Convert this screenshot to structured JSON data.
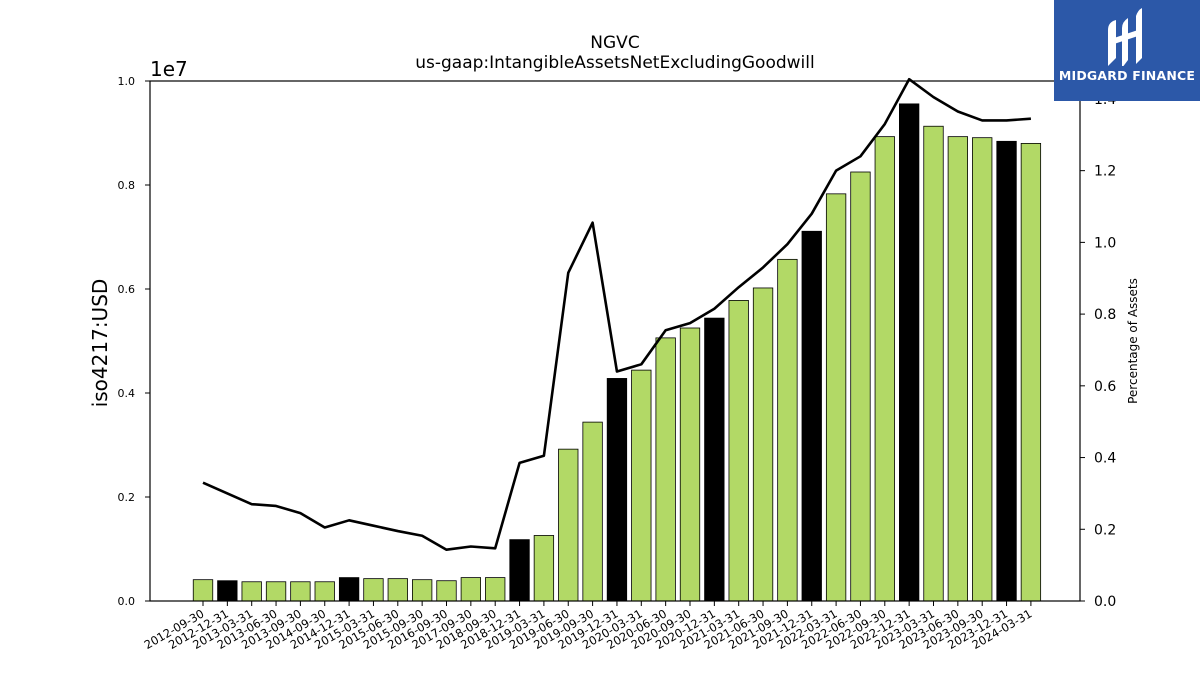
{
  "chart_data": {
    "type": "bar",
    "title": "NGVC",
    "subtitle": "us-gaap:IntangibleAssetsNetExcludingGoodwill",
    "ylabel": "iso4217:USD",
    "y_exponent_label": "1e7",
    "y2label": "Percentage of Assets",
    "ylim": [
      0,
      10000000
    ],
    "y2lim": [
      0,
      1.45
    ],
    "y_ticks": [
      0,
      2000000,
      4000000,
      6000000,
      8000000,
      10000000
    ],
    "y_tick_labels": [
      "0.0",
      "0.2",
      "0.4",
      "0.6",
      "0.8",
      "1.0"
    ],
    "y2_ticks": [
      0,
      0.2,
      0.4,
      0.6,
      0.8,
      1.0,
      1.2,
      1.4
    ],
    "y2_tick_labels": [
      "0.0",
      "0.2",
      "0.4",
      "0.6",
      "0.8",
      "1.0",
      "1.2",
      "1.4"
    ],
    "grid": false,
    "colors": {
      "quarter_bar": "#b2d966",
      "fiscal_year_bar": "#000000",
      "line": "#000000"
    },
    "categories": [
      "2012-09-30",
      "2012-12-31",
      "2013-03-31",
      "2013-06-30",
      "2013-09-30",
      "2014-09-30",
      "2014-12-31",
      "2015-03-31",
      "2015-06-30",
      "2015-09-30",
      "2016-09-30",
      "2017-09-30",
      "2018-09-30",
      "2018-12-31",
      "2019-03-31",
      "2019-06-30",
      "2019-09-30",
      "2019-12-31",
      "2020-03-31",
      "2020-06-30",
      "2020-09-30",
      "2020-12-31",
      "2021-03-31",
      "2021-06-30",
      "2021-09-30",
      "2021-12-31",
      "2022-03-31",
      "2022-06-30",
      "2022-09-30",
      "2022-12-31",
      "2023-03-31",
      "2023-06-30",
      "2023-09-30",
      "2023-12-31",
      "2024-03-31"
    ],
    "series": [
      {
        "kind": "bar",
        "values": [
          410000,
          390000,
          370000,
          370000,
          370000,
          370000,
          450000,
          430000,
          430000,
          410000,
          390000,
          450000,
          450000,
          1180000,
          1260000,
          2920000,
          3440000,
          4280000,
          4440000,
          5060000,
          5250000,
          5440000,
          5780000,
          6020000,
          6570000,
          7110000,
          7830000,
          8250000,
          8930000,
          9560000,
          9130000,
          8930000,
          8910000,
          8840000,
          8800000
        ],
        "highlight": [
          false,
          true,
          false,
          false,
          false,
          false,
          true,
          false,
          false,
          false,
          false,
          false,
          false,
          true,
          false,
          false,
          false,
          true,
          false,
          false,
          false,
          true,
          false,
          false,
          false,
          true,
          false,
          false,
          false,
          true,
          false,
          false,
          false,
          true,
          false
        ]
      },
      {
        "kind": "line",
        "axis": "right",
        "values": [
          0.33,
          0.3,
          0.27,
          0.265,
          0.245,
          0.205,
          0.225,
          0.21,
          0.195,
          0.182,
          0.143,
          0.152,
          0.147,
          0.385,
          0.405,
          0.915,
          1.055,
          0.64,
          0.66,
          0.755,
          0.775,
          0.815,
          0.875,
          0.93,
          0.995,
          1.08,
          1.2,
          1.24,
          1.33,
          1.455,
          1.405,
          1.365,
          1.34,
          1.34,
          1.345
        ]
      }
    ]
  },
  "logo": {
    "text": "MIDGARD FINANCE"
  }
}
